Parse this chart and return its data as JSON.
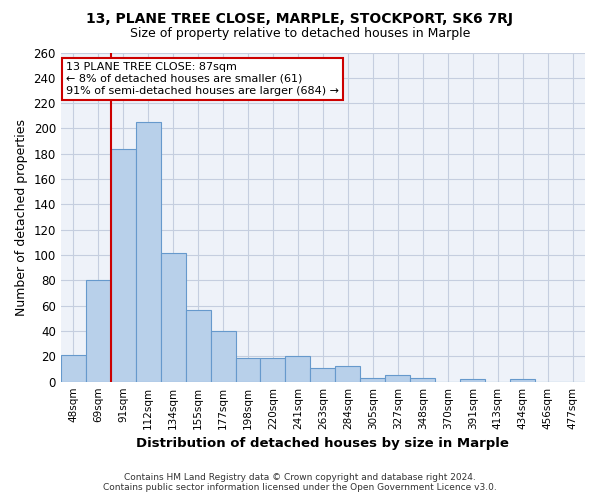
{
  "title1": "13, PLANE TREE CLOSE, MARPLE, STOCKPORT, SK6 7RJ",
  "title2": "Size of property relative to detached houses in Marple",
  "xlabel": "Distribution of detached houses by size in Marple",
  "ylabel": "Number of detached properties",
  "categories": [
    "48sqm",
    "69sqm",
    "91sqm",
    "112sqm",
    "134sqm",
    "155sqm",
    "177sqm",
    "198sqm",
    "220sqm",
    "241sqm",
    "263sqm",
    "284sqm",
    "305sqm",
    "327sqm",
    "348sqm",
    "370sqm",
    "391sqm",
    "413sqm",
    "434sqm",
    "456sqm",
    "477sqm"
  ],
  "values": [
    21,
    80,
    184,
    205,
    102,
    57,
    40,
    19,
    19,
    20,
    11,
    12,
    3,
    5,
    3,
    0,
    2,
    0,
    2,
    0,
    0
  ],
  "bar_color": "#b8d0ea",
  "bar_edge_color": "#6699cc",
  "ylim": [
    0,
    260
  ],
  "yticks": [
    0,
    20,
    40,
    60,
    80,
    100,
    120,
    140,
    160,
    180,
    200,
    220,
    240,
    260
  ],
  "vline_color": "#cc0000",
  "annotation_line1": "13 PLANE TREE CLOSE: 87sqm",
  "annotation_line2": "← 8% of detached houses are smaller (61)",
  "annotation_line3": "91% of semi-detached houses are larger (684) →",
  "annotation_box_color": "#ffffff",
  "annotation_box_edge": "#cc0000",
  "footer1": "Contains HM Land Registry data © Crown copyright and database right 2024.",
  "footer2": "Contains public sector information licensed under the Open Government Licence v3.0.",
  "bg_color": "#eef2f9",
  "grid_color": "#c5cedf"
}
